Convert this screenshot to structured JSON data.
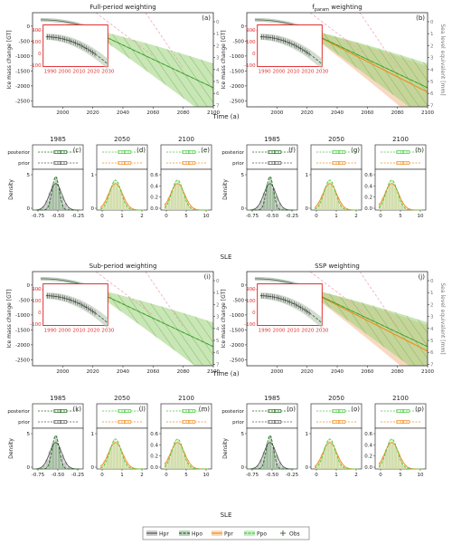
{
  "colors": {
    "Hpr": "#555555",
    "Hpo": "#1e6b1e",
    "Ppr": "#f08c1e",
    "Ppo": "#46c83c",
    "obs": "#3a5a3a",
    "inset_frame": "#e03030",
    "green_band": "#9bd27a",
    "orange_band": "#f3b98c",
    "pink_line": "#f2a0b0",
    "grey_band": "#b8c4b4"
  },
  "common": {
    "ylabel_left": "Ice mass change [GT]",
    "ylabel_right": "Sea level equivalent [mm]",
    "xlabel_big": "Time (a)",
    "density_ylabel": "Density",
    "sle_label": "SLE",
    "row_posterior": "posterior",
    "row_prior": "prior",
    "years": [
      "1985",
      "2050",
      "2100"
    ]
  },
  "legend": [
    {
      "label": "Hpr",
      "key": "Hpr",
      "style": "solid"
    },
    {
      "label": "Hpo",
      "key": "Hpo",
      "style": "dashed"
    },
    {
      "label": "Ppr",
      "key": "Ppr",
      "style": "solid"
    },
    {
      "label": "Ppo",
      "key": "Ppo",
      "style": "dashed"
    },
    {
      "label": "Obs",
      "key": "obs",
      "style": "plus"
    }
  ],
  "chart_data": [
    {
      "type": "line",
      "panel": "a",
      "title": "Full-period weighting",
      "xlabel": "Time (a)",
      "ylabel": "Ice mass change [GT]",
      "xlim": [
        1980,
        2100
      ],
      "ylim": [
        -2700,
        450
      ],
      "yticks": [
        0,
        -500,
        -1000,
        -1500,
        -2000,
        -2500
      ],
      "xticks": [
        2000,
        2020,
        2040,
        2060,
        2080,
        2100
      ],
      "right_ticks": [
        "0",
        "1",
        "2",
        "3",
        "4",
        "5",
        "6",
        "7"
      ],
      "inset": {
        "xlim": [
          1985,
          2030
        ],
        "ylim": [
          -110,
          240
        ],
        "xticks": [
          1990,
          2000,
          2010,
          2020,
          2030
        ],
        "yticks": [
          200,
          100,
          0,
          -100
        ]
      }
    },
    {
      "type": "line",
      "panel": "b",
      "title": "f_param weighting",
      "xlabel": "Time (a)",
      "ylabel": "Ice mass change [GT]",
      "xlim": [
        1980,
        2100
      ],
      "ylim": [
        -2700,
        450
      ],
      "yticks": [
        0,
        -500,
        -1000,
        -1500,
        -2000,
        -2500
      ],
      "xticks": [
        2000,
        2020,
        2040,
        2060,
        2080,
        2100
      ],
      "right_ticks": [
        "0",
        "1",
        "2",
        "3",
        "4",
        "5",
        "6",
        "7"
      ],
      "inset": {
        "xlim": [
          1985,
          2030
        ],
        "ylim": [
          -110,
          240
        ],
        "xticks": [
          1990,
          2000,
          2010,
          2020,
          2030
        ],
        "yticks": [
          200,
          100,
          0,
          -100
        ]
      }
    },
    {
      "type": "line",
      "panel": "i",
      "title": "Sub-period weighting",
      "xlabel": "Time (a)",
      "ylabel": "Ice mass change [GT]",
      "xlim": [
        1980,
        2100
      ],
      "ylim": [
        -2700,
        450
      ],
      "yticks": [
        0,
        -500,
        -1000,
        -1500,
        -2000,
        -2500
      ],
      "xticks": [
        2000,
        2020,
        2040,
        2060,
        2080,
        2100
      ],
      "right_ticks": [
        "0",
        "1",
        "2",
        "3",
        "4",
        "5",
        "6",
        "7"
      ],
      "inset": {
        "xlim": [
          1985,
          2030
        ],
        "ylim": [
          -110,
          240
        ],
        "xticks": [
          1990,
          2000,
          2010,
          2020,
          2030
        ],
        "yticks": [
          200,
          100,
          0,
          -100
        ]
      }
    },
    {
      "type": "line",
      "panel": "j",
      "title": "SSP weighting",
      "xlabel": "Time (a)",
      "ylabel": "Ice mass change [GT]",
      "xlim": [
        1980,
        2100
      ],
      "ylim": [
        -2700,
        450
      ],
      "yticks": [
        0,
        -500,
        -1000,
        -1500,
        -2000,
        -2500
      ],
      "xticks": [
        2000,
        2020,
        2040,
        2060,
        2080,
        2100
      ],
      "right_ticks": [
        "0",
        "1",
        "2",
        "3",
        "4",
        "5",
        "6",
        "7"
      ],
      "inset": {
        "xlim": [
          1985,
          2030
        ],
        "ylim": [
          -110,
          240
        ],
        "xticks": [
          1990,
          2000,
          2010,
          2020,
          2030
        ],
        "yticks": [
          200,
          100,
          0,
          -100
        ]
      }
    },
    {
      "type": "bar",
      "panel": "c",
      "year": "1985",
      "xticks": [
        "-0.75",
        "-0.50",
        "-0.25"
      ],
      "xlim": [
        -0.85,
        -0.15
      ],
      "yticks": [
        "0",
        "5"
      ],
      "ymax": 10
    },
    {
      "type": "bar",
      "panel": "d",
      "year": "2050",
      "xticks": [
        "0",
        "1",
        "2"
      ],
      "xlim": [
        -0.3,
        2.7
      ],
      "yticks": [
        "0",
        "1"
      ],
      "ymax": 1.6
    },
    {
      "type": "bar",
      "panel": "e",
      "year": "2100",
      "xticks": [
        "0",
        "5",
        "10"
      ],
      "xlim": [
        -1.5,
        13
      ],
      "yticks": [
        "0.0",
        "0.2",
        "0.4",
        "0.6"
      ],
      "ymax": 0.75
    },
    {
      "type": "bar",
      "panel": "f",
      "year": "1985",
      "xticks": [
        "-0.75",
        "-0.50",
        "-0.25"
      ],
      "xlim": [
        -0.85,
        -0.15
      ],
      "yticks": [
        "0",
        "5"
      ],
      "ymax": 10
    },
    {
      "type": "bar",
      "panel": "g",
      "year": "2050",
      "xticks": [
        "0",
        "1",
        "2"
      ],
      "xlim": [
        -0.3,
        2.7
      ],
      "yticks": [
        "0",
        "1"
      ],
      "ymax": 1.6
    },
    {
      "type": "bar",
      "panel": "h",
      "year": "2100",
      "xticks": [
        "0",
        "5",
        "10"
      ],
      "xlim": [
        -1.5,
        13
      ],
      "yticks": [
        "0.0",
        "0.2",
        "0.4",
        "0.6"
      ],
      "ymax": 0.75
    },
    {
      "type": "bar",
      "panel": "k",
      "year": "1985",
      "xticks": [
        "-0.75",
        "-0.50",
        "-0.25"
      ],
      "xlim": [
        -0.85,
        -0.15
      ],
      "yticks": [
        "0",
        "5"
      ],
      "ymax": 10
    },
    {
      "type": "bar",
      "panel": "l",
      "year": "2050",
      "xticks": [
        "0",
        "1",
        "2"
      ],
      "xlim": [
        -0.3,
        2.7
      ],
      "yticks": [
        "0",
        "1"
      ],
      "ymax": 1.6
    },
    {
      "type": "bar",
      "panel": "m",
      "year": "2100",
      "xticks": [
        "0",
        "5",
        "10"
      ],
      "xlim": [
        -1.5,
        13
      ],
      "yticks": [
        "0.0",
        "0.2",
        "0.4",
        "0.6"
      ],
      "ymax": 0.75
    },
    {
      "type": "bar",
      "panel": "n",
      "year": "1985",
      "xticks": [
        "-0.75",
        "-0.50",
        "-0.25"
      ],
      "xlim": [
        -0.85,
        -0.15
      ],
      "yticks": [
        "0",
        "5"
      ],
      "ymax": 10
    },
    {
      "type": "bar",
      "panel": "o",
      "year": "2050",
      "xticks": [
        "0",
        "1",
        "2"
      ],
      "xlim": [
        -0.3,
        2.7
      ],
      "yticks": [
        "0",
        "1"
      ],
      "ymax": 1.6
    },
    {
      "type": "bar",
      "panel": "p",
      "year": "2100",
      "xticks": [
        "0",
        "5",
        "10"
      ],
      "xlim": [
        -1.5,
        13
      ],
      "yticks": [
        "0.0",
        "0.2",
        "0.4",
        "0.6"
      ],
      "ymax": 0.75
    }
  ]
}
